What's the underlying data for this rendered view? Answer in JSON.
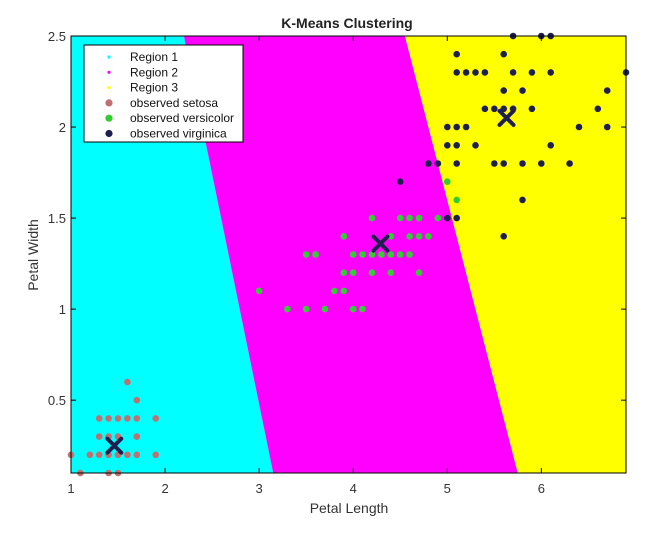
{
  "chart_data": {
    "type": "scatter",
    "title": "K-Means Clustering",
    "xlabel": "Petal Length",
    "ylabel": "Petal Width",
    "xlim": [
      1,
      6.9
    ],
    "ylim": [
      0.1,
      2.5
    ],
    "xticks": [
      1,
      2,
      3,
      4,
      5,
      6
    ],
    "yticks": [
      0.5,
      1,
      1.5,
      2,
      2.5
    ],
    "xtick_labels": [
      "1",
      "2",
      "3",
      "4",
      "5",
      "6"
    ],
    "ytick_labels": [
      "0.5",
      "1",
      "1.5",
      "2",
      "2.5"
    ],
    "grid": false,
    "legend_position": "top-left",
    "regions": [
      {
        "name": "Region 1",
        "color": "#00ffff"
      },
      {
        "name": "Region 2",
        "color": "#ff00ff"
      },
      {
        "name": "Region 3",
        "color": "#ffff00"
      }
    ],
    "region_boundaries": [
      {
        "top": [
          2.2,
          2.5
        ],
        "bottom": [
          3.15,
          0.1
        ]
      },
      {
        "top": [
          4.55,
          2.5
        ],
        "bottom": [
          5.75,
          0.1
        ]
      }
    ],
    "series": [
      {
        "name": "observed setosa",
        "color": "#c07070",
        "points": [
          [
            1.0,
            0.2
          ],
          [
            1.1,
            0.1
          ],
          [
            1.2,
            0.2
          ],
          [
            1.3,
            0.2
          ],
          [
            1.3,
            0.3
          ],
          [
            1.3,
            0.4
          ],
          [
            1.4,
            0.1
          ],
          [
            1.4,
            0.2
          ],
          [
            1.4,
            0.3
          ],
          [
            1.5,
            0.1
          ],
          [
            1.5,
            0.2
          ],
          [
            1.5,
            0.3
          ],
          [
            1.5,
            0.4
          ],
          [
            1.6,
            0.2
          ],
          [
            1.6,
            0.4
          ],
          [
            1.6,
            0.6
          ],
          [
            1.7,
            0.2
          ],
          [
            1.7,
            0.3
          ],
          [
            1.7,
            0.4
          ],
          [
            1.7,
            0.5
          ],
          [
            1.9,
            0.2
          ],
          [
            1.9,
            0.4
          ],
          [
            1.4,
            0.4
          ]
        ]
      },
      {
        "name": "observed versicolor",
        "color": "#33cc33",
        "points": [
          [
            3.0,
            1.1
          ],
          [
            3.3,
            1.0
          ],
          [
            3.5,
            1.0
          ],
          [
            3.5,
            1.3
          ],
          [
            3.6,
            1.3
          ],
          [
            3.7,
            1.0
          ],
          [
            3.8,
            1.1
          ],
          [
            3.9,
            1.1
          ],
          [
            3.9,
            1.2
          ],
          [
            3.9,
            1.4
          ],
          [
            4.0,
            1.0
          ],
          [
            4.0,
            1.2
          ],
          [
            4.0,
            1.3
          ],
          [
            4.1,
            1.0
          ],
          [
            4.1,
            1.3
          ],
          [
            4.2,
            1.2
          ],
          [
            4.2,
            1.3
          ],
          [
            4.2,
            1.5
          ],
          [
            4.3,
            1.3
          ],
          [
            4.4,
            1.2
          ],
          [
            4.4,
            1.3
          ],
          [
            4.4,
            1.4
          ],
          [
            4.5,
            1.3
          ],
          [
            4.5,
            1.5
          ],
          [
            4.6,
            1.3
          ],
          [
            4.6,
            1.4
          ],
          [
            4.6,
            1.5
          ],
          [
            4.7,
            1.2
          ],
          [
            4.7,
            1.4
          ],
          [
            4.7,
            1.5
          ],
          [
            4.8,
            1.4
          ],
          [
            4.8,
            1.8
          ],
          [
            4.9,
            1.5
          ],
          [
            5.0,
            1.7
          ],
          [
            5.1,
            1.6
          ]
        ]
      },
      {
        "name": "observed virginica",
        "color": "#1f1f4f",
        "points": [
          [
            4.5,
            1.7
          ],
          [
            4.8,
            1.8
          ],
          [
            4.9,
            1.8
          ],
          [
            5.0,
            1.5
          ],
          [
            5.0,
            1.9
          ],
          [
            5.0,
            2.0
          ],
          [
            5.1,
            1.5
          ],
          [
            5.1,
            1.8
          ],
          [
            5.1,
            1.9
          ],
          [
            5.1,
            2.0
          ],
          [
            5.1,
            2.3
          ],
          [
            5.1,
            2.4
          ],
          [
            5.2,
            2.0
          ],
          [
            5.2,
            2.3
          ],
          [
            5.3,
            1.9
          ],
          [
            5.3,
            2.3
          ],
          [
            5.4,
            2.1
          ],
          [
            5.4,
            2.3
          ],
          [
            5.5,
            1.8
          ],
          [
            5.5,
            2.1
          ],
          [
            5.6,
            1.4
          ],
          [
            5.6,
            1.8
          ],
          [
            5.6,
            2.1
          ],
          [
            5.6,
            2.2
          ],
          [
            5.6,
            2.4
          ],
          [
            5.7,
            2.1
          ],
          [
            5.7,
            2.3
          ],
          [
            5.7,
            2.5
          ],
          [
            5.8,
            1.6
          ],
          [
            5.8,
            1.8
          ],
          [
            5.8,
            2.2
          ],
          [
            5.9,
            2.1
          ],
          [
            5.9,
            2.3
          ],
          [
            6.0,
            1.8
          ],
          [
            6.0,
            2.5
          ],
          [
            6.1,
            1.9
          ],
          [
            6.1,
            2.3
          ],
          [
            6.1,
            2.5
          ],
          [
            6.3,
            1.8
          ],
          [
            6.4,
            2.0
          ],
          [
            6.6,
            2.1
          ],
          [
            6.7,
            2.0
          ],
          [
            6.7,
            2.2
          ],
          [
            6.9,
            2.3
          ]
        ]
      }
    ],
    "centroids": {
      "color": "#1f1f4f",
      "points": [
        [
          1.46,
          0.25
        ],
        [
          4.29,
          1.36
        ],
        [
          5.63,
          2.05
        ]
      ]
    }
  }
}
